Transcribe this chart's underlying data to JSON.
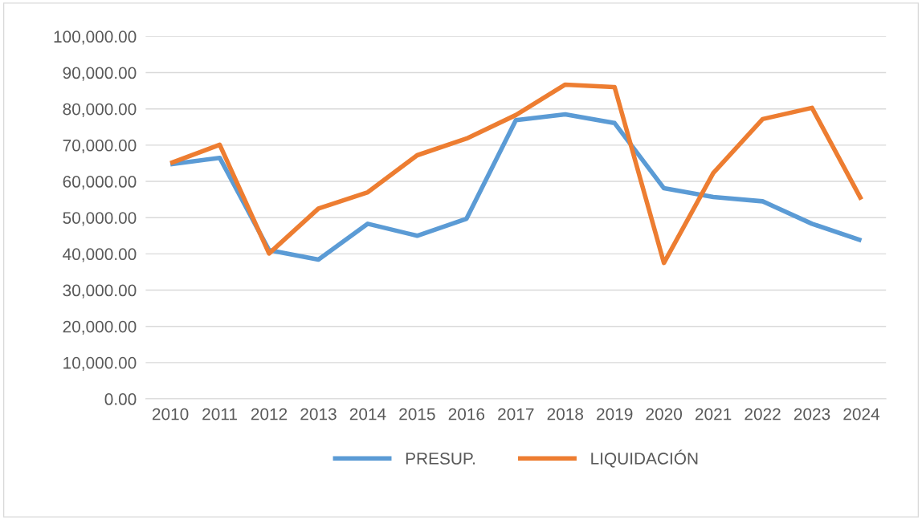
{
  "chart_data": {
    "type": "line",
    "categories": [
      "2010",
      "2011",
      "2012",
      "2013",
      "2014",
      "2015",
      "2016",
      "2017",
      "2018",
      "2019",
      "2020",
      "2021",
      "2022",
      "2023",
      "2024"
    ],
    "series": [
      {
        "name": "PRESUP.",
        "color": "#5b9bd5",
        "values": [
          64700,
          66500,
          41000,
          38400,
          48300,
          45000,
          49700,
          76900,
          78500,
          76100,
          58100,
          55700,
          54500,
          48300,
          43700
        ]
      },
      {
        "name": "LIQUIDACIÓN",
        "color": "#ed7d31",
        "values": [
          65000,
          70100,
          40100,
          52500,
          57000,
          67200,
          71800,
          78300,
          86700,
          86000,
          37500,
          62300,
          77200,
          80300,
          55000
        ]
      }
    ],
    "ylim": [
      0,
      100000
    ],
    "yticks": [
      {
        "value": 0,
        "label": "0.00"
      },
      {
        "value": 10000,
        "label": "10,000.00"
      },
      {
        "value": 20000,
        "label": "20,000.00"
      },
      {
        "value": 30000,
        "label": "30,000.00"
      },
      {
        "value": 40000,
        "label": "40,000.00"
      },
      {
        "value": 50000,
        "label": "50,000.00"
      },
      {
        "value": 60000,
        "label": "60,000.00"
      },
      {
        "value": 70000,
        "label": "70,000.00"
      },
      {
        "value": 80000,
        "label": "80,000.00"
      },
      {
        "value": 90000,
        "label": "90,000.00"
      },
      {
        "value": 100000,
        "label": "100,000.00"
      }
    ],
    "grid": "y",
    "legend": "bottom",
    "marker": "none",
    "line_style": "solid"
  }
}
